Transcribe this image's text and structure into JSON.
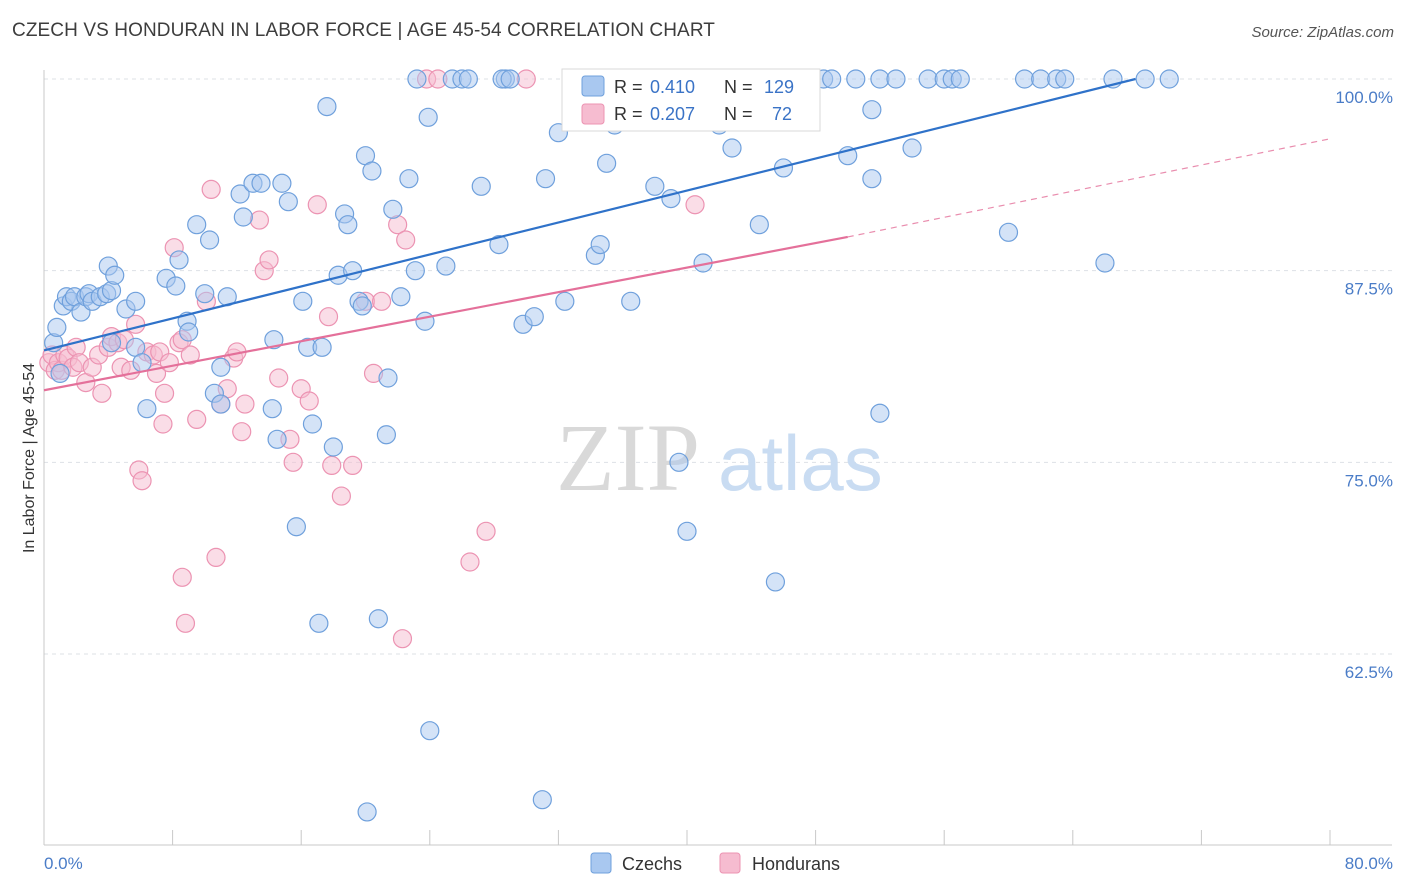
{
  "header": {
    "title": "CZECH VS HONDURAN IN LABOR FORCE | AGE 45-54 CORRELATION CHART",
    "source": "Source: ZipAtlas.com"
  },
  "watermark": {
    "zip": "ZIP",
    "atlas": "atlas"
  },
  "colors": {
    "czech_fill": "#a9c8f0",
    "czech_stroke": "#6fa0dc",
    "czech_line": "#2f72c9",
    "honduran_fill": "#f6bcd0",
    "honduran_stroke": "#ec93b2",
    "honduran_line": "#e4709a",
    "axis_label": "#4a7cc7",
    "grid": "#dde1e6"
  },
  "legend_top": [
    {
      "r_label": "R =",
      "r_value": "0.410",
      "n_label": "N =",
      "n_value": "129"
    },
    {
      "r_label": "R =",
      "r_value": "0.207",
      "n_label": "N =",
      "n_value": "72"
    }
  ],
  "chart_data": {
    "type": "scatter",
    "title": "CZECH VS HONDURAN IN LABOR FORCE | AGE 45-54 CORRELATION CHART",
    "xlabel": "",
    "ylabel": "In Labor Force | Age 45-54",
    "xlim": [
      0,
      80
    ],
    "ylim": [
      51,
      102
    ],
    "x_tick_labels": [
      "0.0%",
      "80.0%"
    ],
    "y_ticks": [
      62.5,
      75.0,
      87.5,
      100.0
    ],
    "y_tick_labels": [
      "62.5%",
      "75.0%",
      "87.5%",
      "100.0%"
    ],
    "grid": true,
    "legend_position": "bottom",
    "series": [
      {
        "name": "Czechs",
        "R": 0.41,
        "N": 129,
        "trend": {
          "x0": 0,
          "y0": 82.3,
          "x1": 67.9,
          "y1": 100.0
        },
        "points": [
          [
            0.6,
            82.8
          ],
          [
            0.8,
            83.8
          ],
          [
            1.0,
            80.8
          ],
          [
            1.2,
            85.2
          ],
          [
            1.4,
            85.8
          ],
          [
            1.7,
            85.5
          ],
          [
            1.9,
            85.8
          ],
          [
            2.3,
            84.8
          ],
          [
            2.6,
            85.8
          ],
          [
            2.8,
            86.0
          ],
          [
            3.0,
            85.5
          ],
          [
            3.5,
            85.8
          ],
          [
            3.9,
            86.0
          ],
          [
            4.0,
            87.8
          ],
          [
            4.2,
            86.2
          ],
          [
            4.4,
            87.2
          ],
          [
            4.2,
            82.8
          ],
          [
            5.1,
            85.0
          ],
          [
            5.7,
            85.5
          ],
          [
            5.7,
            82.5
          ],
          [
            6.1,
            81.5
          ],
          [
            6.4,
            78.5
          ],
          [
            7.6,
            87.0
          ],
          [
            8.2,
            86.5
          ],
          [
            8.4,
            88.2
          ],
          [
            8.9,
            84.2
          ],
          [
            9.0,
            83.5
          ],
          [
            9.5,
            90.5
          ],
          [
            10.0,
            86.0
          ],
          [
            10.3,
            89.5
          ],
          [
            11.0,
            81.2
          ],
          [
            10.6,
            79.5
          ],
          [
            11.0,
            78.8
          ],
          [
            11.4,
            85.8
          ],
          [
            12.2,
            92.5
          ],
          [
            12.4,
            91.0
          ],
          [
            13.0,
            93.2
          ],
          [
            13.5,
            93.2
          ],
          [
            14.2,
            78.5
          ],
          [
            14.3,
            83.0
          ],
          [
            14.5,
            76.5
          ],
          [
            14.8,
            93.2
          ],
          [
            15.2,
            92.0
          ],
          [
            15.7,
            70.8
          ],
          [
            16.1,
            85.5
          ],
          [
            16.4,
            82.5
          ],
          [
            16.7,
            77.5
          ],
          [
            17.1,
            64.5
          ],
          [
            17.3,
            82.5
          ],
          [
            17.6,
            98.2
          ],
          [
            18.0,
            76.0
          ],
          [
            18.3,
            87.2
          ],
          [
            18.7,
            91.2
          ],
          [
            18.9,
            90.5
          ],
          [
            19.2,
            87.5
          ],
          [
            19.6,
            85.5
          ],
          [
            19.8,
            85.2
          ],
          [
            20.0,
            95.0
          ],
          [
            20.4,
            94.0
          ],
          [
            21.4,
            80.5
          ],
          [
            21.3,
            76.8
          ],
          [
            20.8,
            64.8
          ],
          [
            20.1,
            52.2
          ],
          [
            21.7,
            91.5
          ],
          [
            22.2,
            85.8
          ],
          [
            22.7,
            93.5
          ],
          [
            23.1,
            87.5
          ],
          [
            23.7,
            84.2
          ],
          [
            23.9,
            97.5
          ],
          [
            23.2,
            100.0
          ],
          [
            24.0,
            57.5
          ],
          [
            25.0,
            87.8
          ],
          [
            25.4,
            100.0
          ],
          [
            26.0,
            100.0
          ],
          [
            26.4,
            100.0
          ],
          [
            27.2,
            93.0
          ],
          [
            28.3,
            89.2
          ],
          [
            28.7,
            100.0
          ],
          [
            28.5,
            100.0
          ],
          [
            29.0,
            100.0
          ],
          [
            29.8,
            84.0
          ],
          [
            30.5,
            84.5
          ],
          [
            31.2,
            93.5
          ],
          [
            32.0,
            96.5
          ],
          [
            32.4,
            85.5
          ],
          [
            33.2,
            100.0
          ],
          [
            33.7,
            100.0
          ],
          [
            34.3,
            88.5
          ],
          [
            34.6,
            89.2
          ],
          [
            35.0,
            94.5
          ],
          [
            35.5,
            97.0
          ],
          [
            36.0,
            98.5
          ],
          [
            36.5,
            85.5
          ],
          [
            36.5,
            100.0
          ],
          [
            37.0,
            100.0
          ],
          [
            38.0,
            100.0
          ],
          [
            38.0,
            93.0
          ],
          [
            39.0,
            92.2
          ],
          [
            39.5,
            75.0
          ],
          [
            40.2,
            100.0
          ],
          [
            40.8,
            100.0
          ],
          [
            41.0,
            88.0
          ],
          [
            40.0,
            70.5
          ],
          [
            42.0,
            97.0
          ],
          [
            42.8,
            95.5
          ],
          [
            44.0,
            100.0
          ],
          [
            44.5,
            90.5
          ],
          [
            45.5,
            100.0
          ],
          [
            46.0,
            94.2
          ],
          [
            46.5,
            100.0
          ],
          [
            47.0,
            100.0
          ],
          [
            47.5,
            100.0
          ],
          [
            48.5,
            100.0
          ],
          [
            49.0,
            100.0
          ],
          [
            50.0,
            95.0
          ],
          [
            50.5,
            100.0
          ],
          [
            51.5,
            98.0
          ],
          [
            52.0,
            100.0
          ],
          [
            51.5,
            93.5
          ],
          [
            53.0,
            100.0
          ],
          [
            54.0,
            95.5
          ],
          [
            55.0,
            100.0
          ],
          [
            56.0,
            100.0
          ],
          [
            56.5,
            100.0
          ],
          [
            57.0,
            100.0
          ],
          [
            60.0,
            90.0
          ],
          [
            61.0,
            100.0
          ],
          [
            62.0,
            100.0
          ],
          [
            63.0,
            100.0
          ],
          [
            63.5,
            100.0
          ],
          [
            66.0,
            88.0
          ],
          [
            70.0,
            100.0
          ],
          [
            66.5,
            100.0
          ],
          [
            52.0,
            78.2
          ],
          [
            31.0,
            53.0
          ],
          [
            68.5,
            100.0
          ],
          [
            45.5,
            67.2
          ]
        ]
      },
      {
        "name": "Hondurans",
        "R": 0.207,
        "N": 72,
        "trend": {
          "x0": 0,
          "y0": 79.7,
          "x1": 50.0,
          "y1": 89.7,
          "x_dash_end": 80,
          "y_dash_end": 96.1
        },
        "points": [
          [
            0.3,
            81.5
          ],
          [
            0.5,
            82.0
          ],
          [
            0.7,
            81.0
          ],
          [
            0.9,
            81.5
          ],
          [
            1.1,
            81.0
          ],
          [
            1.3,
            82.0
          ],
          [
            1.5,
            81.8
          ],
          [
            1.8,
            81.2
          ],
          [
            2.0,
            82.5
          ],
          [
            2.2,
            81.5
          ],
          [
            2.6,
            80.2
          ],
          [
            3.0,
            81.2
          ],
          [
            3.4,
            82.0
          ],
          [
            3.6,
            79.5
          ],
          [
            4.0,
            82.5
          ],
          [
            4.2,
            83.2
          ],
          [
            4.6,
            82.8
          ],
          [
            4.8,
            81.2
          ],
          [
            5.0,
            83.0
          ],
          [
            5.4,
            81.0
          ],
          [
            5.7,
            84.0
          ],
          [
            5.9,
            74.5
          ],
          [
            6.1,
            73.8
          ],
          [
            6.4,
            82.2
          ],
          [
            6.8,
            82.0
          ],
          [
            7.0,
            80.8
          ],
          [
            7.2,
            82.2
          ],
          [
            7.5,
            79.5
          ],
          [
            7.4,
            77.5
          ],
          [
            7.8,
            81.5
          ],
          [
            8.1,
            89.0
          ],
          [
            8.4,
            82.8
          ],
          [
            8.6,
            83.0
          ],
          [
            8.6,
            67.5
          ],
          [
            8.8,
            64.5
          ],
          [
            9.1,
            82.0
          ],
          [
            9.5,
            77.8
          ],
          [
            10.1,
            85.5
          ],
          [
            10.4,
            92.8
          ],
          [
            10.7,
            68.8
          ],
          [
            11.4,
            79.8
          ],
          [
            11.0,
            78.8
          ],
          [
            11.8,
            81.8
          ],
          [
            12.0,
            82.2
          ],
          [
            12.3,
            77.0
          ],
          [
            12.5,
            78.8
          ],
          [
            13.4,
            90.8
          ],
          [
            13.7,
            87.5
          ],
          [
            14.0,
            88.2
          ],
          [
            14.6,
            80.5
          ],
          [
            15.3,
            76.5
          ],
          [
            15.5,
            75.0
          ],
          [
            16.0,
            79.8
          ],
          [
            16.5,
            79.0
          ],
          [
            17.0,
            91.8
          ],
          [
            17.7,
            84.5
          ],
          [
            17.9,
            74.8
          ],
          [
            18.5,
            72.8
          ],
          [
            19.2,
            74.8
          ],
          [
            20.0,
            85.5
          ],
          [
            20.5,
            80.8
          ],
          [
            21.0,
            85.5
          ],
          [
            22.0,
            90.5
          ],
          [
            22.5,
            89.5
          ],
          [
            22.3,
            63.5
          ],
          [
            23.8,
            100.0
          ],
          [
            24.5,
            100.0
          ],
          [
            26.5,
            68.5
          ],
          [
            27.5,
            70.5
          ],
          [
            30.0,
            100.0
          ],
          [
            33.0,
            100.0
          ],
          [
            40.5,
            91.8
          ]
        ]
      }
    ]
  }
}
